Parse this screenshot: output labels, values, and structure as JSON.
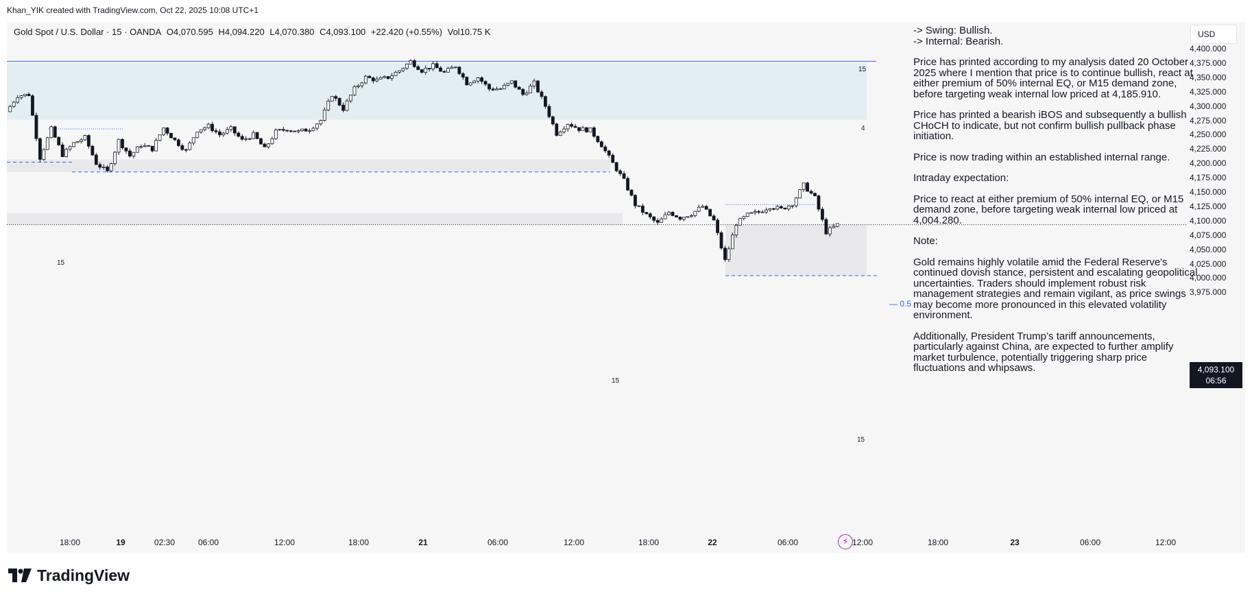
{
  "attribution": "Khan_YIK created with TradingView.com, Oct 22, 2025 10:08 UTC+1",
  "symbol": {
    "name": "Gold Spot / U.S. Dollar · 15 · OANDA",
    "open": "O4,070.595",
    "high": "H4,094.220",
    "low": "L4,070.380",
    "close": "C4,093.100",
    "change": "+22.420 (+0.55%)",
    "volume": "Vol10.75 K"
  },
  "currency_button": "USD",
  "y_axis": [
    "4,400.000",
    "4,375.000",
    "4,350.000",
    "4,325.000",
    "4,300.000",
    "4,275.000",
    "4,250.000",
    "4,225.000",
    "4,200.000",
    "4,175.000",
    "4,150.000",
    "4,125.000",
    "4,100.000",
    "4,075.000",
    "4,050.000",
    "4,025.000",
    "4,000.000",
    "3,975.000"
  ],
  "x_axis": [
    {
      "label": "18:00",
      "bold": false
    },
    {
      "label": "19",
      "bold": true
    },
    {
      "label": "02:30",
      "bold": false
    },
    {
      "label": "06:00",
      "bold": false
    },
    {
      "label": "12:00",
      "bold": false
    },
    {
      "label": "18:00",
      "bold": false
    },
    {
      "label": "21",
      "bold": true
    },
    {
      "label": "06:00",
      "bold": false
    },
    {
      "label": "12:00",
      "bold": false
    },
    {
      "label": "18:00",
      "bold": false
    },
    {
      "label": "22",
      "bold": true
    },
    {
      "label": "06:00",
      "bold": false
    },
    {
      "label": "12:00",
      "bold": false
    },
    {
      "label": "18:00",
      "bold": false
    },
    {
      "label": "23",
      "bold": true
    },
    {
      "label": "06:00",
      "bold": false
    },
    {
      "label": "12:00",
      "bold": false
    }
  ],
  "current_price": {
    "price": "4,093.100",
    "countdown": "06:56"
  },
  "zone_labels": {
    "premium_top": "15",
    "premium_inner": "4",
    "left_demand": "15",
    "mid_demand": "15",
    "lower_demand": "15"
  },
  "eq_label": "0.5",
  "notes": {
    "swing": "-> Swing: Bullish.",
    "internal": "-> Internal: Bearish.",
    "p1": "Price has printed according to my analysis dated 20 October 2025 where I mention that price is to continue bullish, react at either premium of 50% internal EQ, or M15 demand zone, before targeting weak internal low priced at 4,185.910.",
    "p2": "Price has printed a bearish iBOS and subsequently a bullish CHoCH to indicate, but not confirm bullish pullback phase initiation.",
    "p3": "Price is now trading within an established internal range.",
    "p4": "Intraday expectation:",
    "p5": "Price to react at either premium of 50% internal EQ, or M15 demand zone, before targeting weak internal low priced at 4,004.280.",
    "p6": "Note:",
    "p7": "Gold remains highly volatile amid the Federal Reserve's continued dovish stance, persistent and escalating geopolitical uncertainties. Traders should implement robust risk management strategies and remain vigilant, as price swings may become more pronounced in this elevated volatility environment.",
    "p8": "Additionally, President Trump’s tariff announcements, particularly against China, are expected to further amplify market turbulence, potentially triggering sharp price fluctuations and whipsaws."
  },
  "logo_text": "TradingView",
  "colors": {
    "bg": "#f7f6f7",
    "candle": "#131722",
    "premium_zone": "#e2eef2",
    "demand_zone": "#e9e9ec",
    "eq_line": "#2962ff",
    "accent": "#2962ff"
  },
  "chart_data": {
    "type": "candlestick",
    "symbol": "XAUUSD",
    "timeframe": "15",
    "ylim": [
      3975,
      4400
    ],
    "levels": {
      "current": 4093.1,
      "weak_internal_low": 4004.28,
      "prior_weak_internal_low": 4185.91
    },
    "zones": [
      {
        "kind": "premium",
        "from": 4276,
        "to": 4375
      },
      {
        "kind": "demand",
        "from": 4185,
        "to": 4207
      },
      {
        "kind": "demand",
        "from": 4093,
        "to": 4113
      },
      {
        "kind": "demand",
        "from": 4004,
        "to": 4093
      }
    ],
    "path": [
      4290,
      4318,
      4320,
      4210,
      4260,
      4215,
      4235,
      4245,
      4200,
      4185,
      4240,
      4213,
      4232,
      4225,
      4262,
      4240,
      4222,
      4258,
      4265,
      4250,
      4260,
      4240,
      4250,
      4225,
      4255,
      4260,
      4255,
      4260,
      4275,
      4320,
      4295,
      4330,
      4350,
      4345,
      4350,
      4362,
      4378,
      4362,
      4370,
      4358,
      4370,
      4340,
      4350,
      4330,
      4330,
      4342,
      4320,
      4340,
      4300,
      4252,
      4270,
      4260,
      4258,
      4232,
      4200,
      4170,
      4128,
      4110,
      4095,
      4115,
      4105,
      4112,
      4125,
      4100,
      4030,
      4095,
      4110,
      4115,
      4125,
      4120,
      4130,
      4162,
      4140,
      4080,
      4093
    ]
  }
}
